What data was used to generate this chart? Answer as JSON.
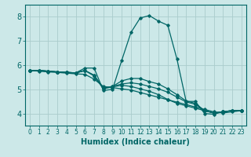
{
  "xlabel": "Humidex (Indice chaleur)",
  "xlim": [
    -0.5,
    23.5
  ],
  "ylim": [
    3.5,
    8.5
  ],
  "xticks": [
    0,
    1,
    2,
    3,
    4,
    5,
    6,
    7,
    8,
    9,
    10,
    11,
    12,
    13,
    14,
    15,
    16,
    17,
    18,
    19,
    20,
    21,
    22,
    23
  ],
  "yticks": [
    4,
    5,
    6,
    7,
    8
  ],
  "background_color": "#cce8e8",
  "line_color": "#006666",
  "grid_color": "#aacccc",
  "series": [
    {
      "x": [
        0,
        1,
        2,
        3,
        4,
        5,
        6,
        7,
        8,
        9,
        10,
        11,
        12,
        13,
        14,
        15,
        16,
        17,
        18,
        19,
        20,
        21,
        22,
        23
      ],
      "y": [
        5.78,
        5.78,
        5.75,
        5.72,
        5.7,
        5.68,
        5.88,
        5.88,
        4.95,
        5.0,
        6.2,
        7.35,
        7.95,
        8.05,
        7.82,
        7.65,
        6.25,
        4.5,
        4.5,
        4.0,
        3.97,
        4.07,
        4.12,
        4.12
      ]
    },
    {
      "x": [
        0,
        1,
        2,
        3,
        4,
        5,
        6,
        7,
        8,
        9,
        10,
        11,
        12,
        13,
        14,
        15,
        16,
        17,
        18,
        19,
        20,
        21,
        22,
        23
      ],
      "y": [
        5.78,
        5.78,
        5.75,
        5.72,
        5.7,
        5.68,
        5.78,
        5.58,
        5.05,
        5.12,
        5.35,
        5.45,
        5.45,
        5.32,
        5.22,
        5.02,
        4.78,
        4.52,
        4.42,
        4.12,
        4.02,
        4.07,
        4.12,
        4.12
      ]
    },
    {
      "x": [
        0,
        1,
        2,
        3,
        4,
        5,
        6,
        7,
        8,
        9,
        10,
        11,
        12,
        13,
        14,
        15,
        16,
        17,
        18,
        19,
        20,
        21,
        22,
        23
      ],
      "y": [
        5.78,
        5.78,
        5.75,
        5.72,
        5.7,
        5.68,
        5.78,
        5.58,
        5.05,
        5.12,
        5.22,
        5.27,
        5.22,
        5.12,
        5.02,
        4.88,
        4.68,
        4.48,
        4.38,
        4.12,
        4.02,
        4.07,
        4.12,
        4.12
      ]
    },
    {
      "x": [
        0,
        1,
        2,
        3,
        4,
        5,
        6,
        7,
        8,
        9,
        10,
        11,
        12,
        13,
        14,
        15,
        16,
        17,
        18,
        19,
        20,
        21,
        22,
        23
      ],
      "y": [
        5.78,
        5.78,
        5.75,
        5.72,
        5.7,
        5.68,
        5.78,
        5.55,
        5.02,
        5.1,
        5.17,
        5.12,
        5.02,
        4.92,
        4.78,
        4.58,
        4.42,
        4.32,
        4.22,
        4.12,
        4.02,
        4.07,
        4.12,
        4.12
      ]
    },
    {
      "x": [
        0,
        1,
        2,
        3,
        4,
        5,
        6,
        7,
        8,
        9,
        10,
        11,
        12,
        13,
        14,
        15,
        16,
        17,
        18,
        19,
        20,
        21,
        22,
        23
      ],
      "y": [
        5.78,
        5.75,
        5.72,
        5.7,
        5.67,
        5.64,
        5.62,
        5.42,
        5.12,
        5.07,
        5.02,
        4.97,
        4.87,
        4.77,
        4.67,
        4.57,
        4.47,
        4.37,
        4.27,
        4.17,
        4.07,
        4.02,
        4.07,
        4.12
      ]
    }
  ]
}
